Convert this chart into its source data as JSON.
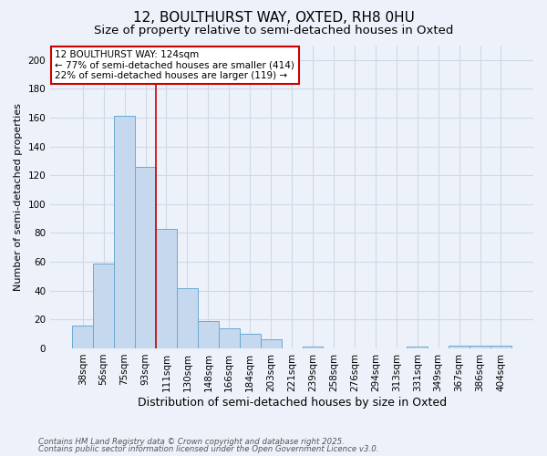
{
  "title1": "12, BOULTHURST WAY, OXTED, RH8 0HU",
  "title2": "Size of property relative to semi-detached houses in Oxted",
  "xlabel": "Distribution of semi-detached houses by size in Oxted",
  "ylabel": "Number of semi-detached properties",
  "categories": [
    "38sqm",
    "56sqm",
    "75sqm",
    "93sqm",
    "111sqm",
    "130sqm",
    "148sqm",
    "166sqm",
    "184sqm",
    "203sqm",
    "221sqm",
    "239sqm",
    "258sqm",
    "276sqm",
    "294sqm",
    "313sqm",
    "331sqm",
    "349sqm",
    "367sqm",
    "386sqm",
    "404sqm"
  ],
  "values": [
    16,
    59,
    161,
    126,
    83,
    42,
    19,
    14,
    10,
    6,
    0,
    1,
    0,
    0,
    0,
    0,
    1,
    0,
    2,
    2,
    2
  ],
  "bar_color": "#c5d8ee",
  "bar_edgecolor": "#6aaad4",
  "vline_between": [
    3,
    4
  ],
  "annotation_text": "12 BOULTHURST WAY: 124sqm\n← 77% of semi-detached houses are smaller (414)\n22% of semi-detached houses are larger (119) →",
  "annotation_box_color": "#ffffff",
  "annotation_box_edgecolor": "#cc0000",
  "vline_color": "#cc0000",
  "footer1": "Contains HM Land Registry data © Crown copyright and database right 2025.",
  "footer2": "Contains public sector information licensed under the Open Government Licence v3.0.",
  "background_color": "#edf1f9",
  "plot_background": "#edf1f9",
  "grid_color": "#d0d8e8",
  "ylim": [
    0,
    210
  ],
  "yticks": [
    0,
    20,
    40,
    60,
    80,
    100,
    120,
    140,
    160,
    180,
    200
  ],
  "title1_fontsize": 11,
  "title2_fontsize": 9.5,
  "ylabel_fontsize": 8,
  "xlabel_fontsize": 9,
  "tick_fontsize": 7.5
}
